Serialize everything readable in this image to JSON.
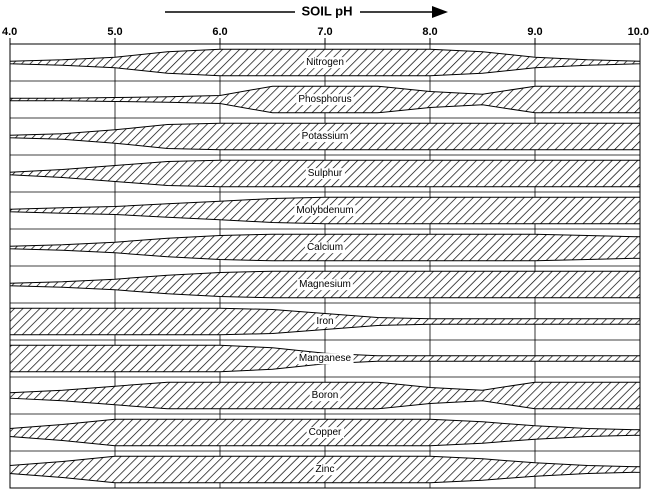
{
  "chart_data": {
    "type": "band",
    "axis_label": "SOIL pH",
    "color": "#000000",
    "xlim": [
      4,
      10
    ],
    "xticks": [
      {
        "value": 4,
        "label": "4.0"
      },
      {
        "value": 5,
        "label": "5.0"
      },
      {
        "value": 6,
        "label": "6.0"
      },
      {
        "value": 7,
        "label": "7.0"
      },
      {
        "value": 8,
        "label": "8.0"
      },
      {
        "value": 9,
        "label": "9.0"
      },
      {
        "value": 10,
        "label": "10.0"
      }
    ],
    "grid": true,
    "x": [
      4,
      4.5,
      5,
      5.5,
      6,
      6.5,
      7,
      7.5,
      8,
      8.5,
      9,
      9.5,
      10
    ],
    "series": [
      {
        "name": "Nitrogen",
        "values": [
          1,
          2,
          4,
          8,
          10,
          10,
          10,
          10,
          10,
          8,
          4,
          2,
          1
        ]
      },
      {
        "name": "Phosphorus",
        "values": [
          1,
          1,
          1.5,
          2,
          3,
          10,
          10,
          10,
          6,
          4,
          10,
          10,
          10
        ]
      },
      {
        "name": "Potassium",
        "values": [
          1,
          2,
          5,
          9,
          10,
          10,
          10,
          10,
          10,
          10,
          10,
          10,
          10
        ]
      },
      {
        "name": "Sulphur",
        "values": [
          1,
          3,
          6,
          9,
          10,
          10,
          10,
          10,
          10,
          10,
          10,
          10,
          10
        ]
      },
      {
        "name": "Molybdenum",
        "values": [
          1,
          2,
          3,
          5,
          7,
          9,
          10,
          10,
          10,
          10,
          10,
          10,
          10
        ]
      },
      {
        "name": "Calcium",
        "values": [
          1,
          2,
          4,
          7,
          9,
          10,
          10,
          10,
          10,
          10,
          10,
          9,
          8
        ]
      },
      {
        "name": "Magnesium",
        "values": [
          1,
          2,
          4,
          7,
          9,
          10,
          10,
          10,
          10,
          10,
          10,
          10,
          10
        ]
      },
      {
        "name": "Iron",
        "values": [
          10,
          10,
          10,
          10,
          10,
          9,
          6,
          3,
          2,
          2,
          2,
          2,
          2
        ]
      },
      {
        "name": "Manganese",
        "values": [
          10,
          10,
          10,
          10,
          10,
          8,
          4,
          2,
          2,
          2,
          2,
          2,
          2
        ]
      },
      {
        "name": "Boron",
        "values": [
          2,
          4,
          7,
          10,
          10,
          10,
          10,
          10,
          6,
          4,
          10,
          10,
          10
        ]
      },
      {
        "name": "Copper",
        "values": [
          3,
          6,
          10,
          10,
          10,
          10,
          10,
          10,
          10,
          8,
          5,
          3,
          2
        ]
      },
      {
        "name": "Zinc",
        "values": [
          3,
          6,
          10,
          10,
          10,
          10,
          10,
          10,
          10,
          8,
          5,
          3,
          2
        ]
      }
    ]
  }
}
